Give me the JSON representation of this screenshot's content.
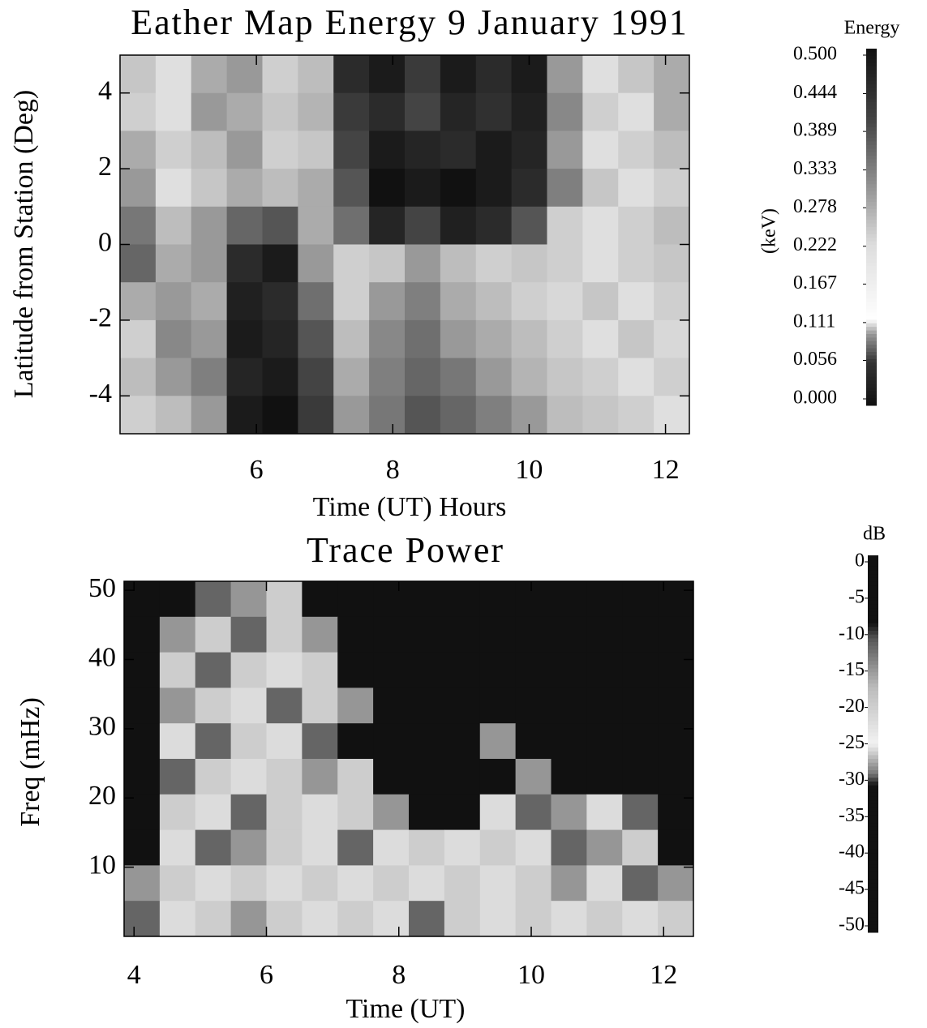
{
  "chart_data": [
    {
      "type": "heatmap",
      "title": "Eather Map Energy 9 January 1991",
      "x_label": "Time (UT) Hours",
      "y_label": "Latitude from Station (Deg)",
      "xlim": [
        4.0,
        12.35
      ],
      "ylim": [
        -5,
        5
      ],
      "xticks": [
        6,
        8,
        10,
        12
      ],
      "yticks": [
        -4,
        -2,
        0,
        2,
        4
      ],
      "colorbar_title": "Energy",
      "colorbar_label": "(keV)",
      "clim": [
        0,
        0.5
      ],
      "cticks": [
        {
          "value": 0.5,
          "label": "0.500"
        },
        0.444,
        0.389,
        0.333,
        0.278,
        0.222,
        0.167,
        0.111,
        0.056,
        {
          "value": 0,
          "label": "0.000"
        }
      ],
      "colormap": [
        [
          0,
          "#111111"
        ],
        [
          0.12,
          "#333333"
        ],
        [
          0.2,
          "#999999"
        ],
        [
          0.24,
          "#ffffff"
        ],
        [
          0.45,
          "#dddddd"
        ],
        [
          0.6,
          "#999999"
        ],
        [
          0.8,
          "#444444"
        ],
        [
          1,
          "#111111"
        ]
      ],
      "z": [
        [
          0.25,
          0.22,
          0.28,
          0.3,
          0.24,
          0.26,
          0.45,
          0.48,
          0.42,
          0.48,
          0.45,
          0.48,
          0.3,
          0.22,
          0.25,
          0.28
        ],
        [
          0.24,
          0.22,
          0.3,
          0.28,
          0.25,
          0.27,
          0.42,
          0.45,
          0.4,
          0.46,
          0.44,
          0.47,
          0.32,
          0.24,
          0.22,
          0.28
        ],
        [
          0.28,
          0.24,
          0.26,
          0.3,
          0.24,
          0.25,
          0.4,
          0.48,
          0.46,
          0.45,
          0.48,
          0.46,
          0.3,
          0.22,
          0.24,
          0.26
        ],
        [
          0.3,
          0.22,
          0.25,
          0.28,
          0.26,
          0.28,
          0.38,
          0.5,
          0.48,
          0.5,
          0.48,
          0.45,
          0.33,
          0.25,
          0.22,
          0.24
        ],
        [
          0.34,
          0.26,
          0.3,
          0.36,
          0.38,
          0.28,
          0.35,
          0.46,
          0.4,
          0.47,
          0.45,
          0.38,
          0.24,
          0.22,
          0.24,
          0.26
        ],
        [
          0.36,
          0.28,
          0.3,
          0.45,
          0.48,
          0.3,
          0.24,
          0.25,
          0.3,
          0.26,
          0.24,
          0.25,
          0.24,
          0.22,
          0.24,
          0.25
        ],
        [
          0.28,
          0.3,
          0.28,
          0.47,
          0.45,
          0.35,
          0.24,
          0.3,
          0.33,
          0.28,
          0.26,
          0.24,
          0.23,
          0.25,
          0.22,
          0.24
        ],
        [
          0.24,
          0.32,
          0.3,
          0.48,
          0.46,
          0.38,
          0.26,
          0.32,
          0.35,
          0.3,
          0.28,
          0.26,
          0.24,
          0.22,
          0.25,
          0.23
        ],
        [
          0.26,
          0.3,
          0.33,
          0.46,
          0.48,
          0.4,
          0.28,
          0.33,
          0.36,
          0.34,
          0.3,
          0.27,
          0.25,
          0.24,
          0.22,
          0.24
        ],
        [
          0.24,
          0.26,
          0.3,
          0.48,
          0.5,
          0.42,
          0.3,
          0.34,
          0.38,
          0.36,
          0.33,
          0.3,
          0.26,
          0.25,
          0.24,
          0.22
        ]
      ]
    },
    {
      "type": "heatmap",
      "title": "Trace Power",
      "x_label": "Time (UT)",
      "y_label": "Freq (mHz)",
      "xlim": [
        3.85,
        12.45
      ],
      "ylim": [
        0,
        51.3
      ],
      "xticks": [
        4,
        6,
        8,
        10,
        12
      ],
      "yticks": [
        10,
        20,
        30,
        40,
        50
      ],
      "colorbar_title": "dB",
      "clim": [
        -50,
        0
      ],
      "cticks": [
        0,
        -5,
        -10,
        -15,
        -20,
        -25,
        -30,
        -35,
        -40,
        -45,
        -50
      ],
      "colormap": [
        [
          0,
          "#111111"
        ],
        [
          0.39,
          "#111111"
        ],
        [
          0.42,
          "#777777"
        ],
        [
          0.5,
          "#f2f2f2"
        ],
        [
          0.65,
          "#bbbbbb"
        ],
        [
          0.78,
          "#555555"
        ],
        [
          0.82,
          "#111111"
        ],
        [
          1,
          "#111111"
        ]
      ],
      "z": [
        [
          -40,
          -40,
          -12,
          -28,
          -20,
          -40,
          -40,
          -40,
          -40,
          -40,
          -40,
          -40,
          -40,
          -40,
          -40,
          -40
        ],
        [
          -40,
          -28,
          -20,
          -12,
          -20,
          -28,
          -40,
          -40,
          -40,
          -40,
          -40,
          -40,
          -40,
          -40,
          -40,
          -40
        ],
        [
          -40,
          -20,
          -12,
          -20,
          -22,
          -20,
          -40,
          -40,
          -40,
          -40,
          -40,
          -40,
          -40,
          -40,
          -40,
          -40
        ],
        [
          -40,
          -28,
          -20,
          -22,
          -12,
          -20,
          -28,
          -40,
          -40,
          -40,
          -40,
          -40,
          -40,
          -40,
          -40,
          -40
        ],
        [
          -40,
          -22,
          -12,
          -20,
          -22,
          -12,
          -40,
          -40,
          -40,
          -40,
          -28,
          -40,
          -40,
          -40,
          -40,
          -40
        ],
        [
          -40,
          -12,
          -20,
          -22,
          -20,
          -28,
          -20,
          -40,
          -40,
          -40,
          -40,
          -28,
          -40,
          -40,
          -40,
          -40
        ],
        [
          -40,
          -20,
          -22,
          -12,
          -20,
          -22,
          -20,
          -28,
          -40,
          -40,
          -22,
          -12,
          -28,
          -22,
          -12,
          -40
        ],
        [
          -40,
          -22,
          -12,
          -28,
          -20,
          -22,
          -12,
          -22,
          -20,
          -22,
          -20,
          -22,
          -12,
          -28,
          -20,
          -40
        ],
        [
          -28,
          -20,
          -22,
          -20,
          -22,
          -20,
          -22,
          -20,
          -22,
          -20,
          -22,
          -20,
          -28,
          -22,
          -12,
          -28
        ],
        [
          -12,
          -22,
          -20,
          -28,
          -20,
          -22,
          -20,
          -22,
          -12,
          -20,
          -22,
          -20,
          -22,
          -20,
          -22,
          -20
        ]
      ]
    }
  ]
}
